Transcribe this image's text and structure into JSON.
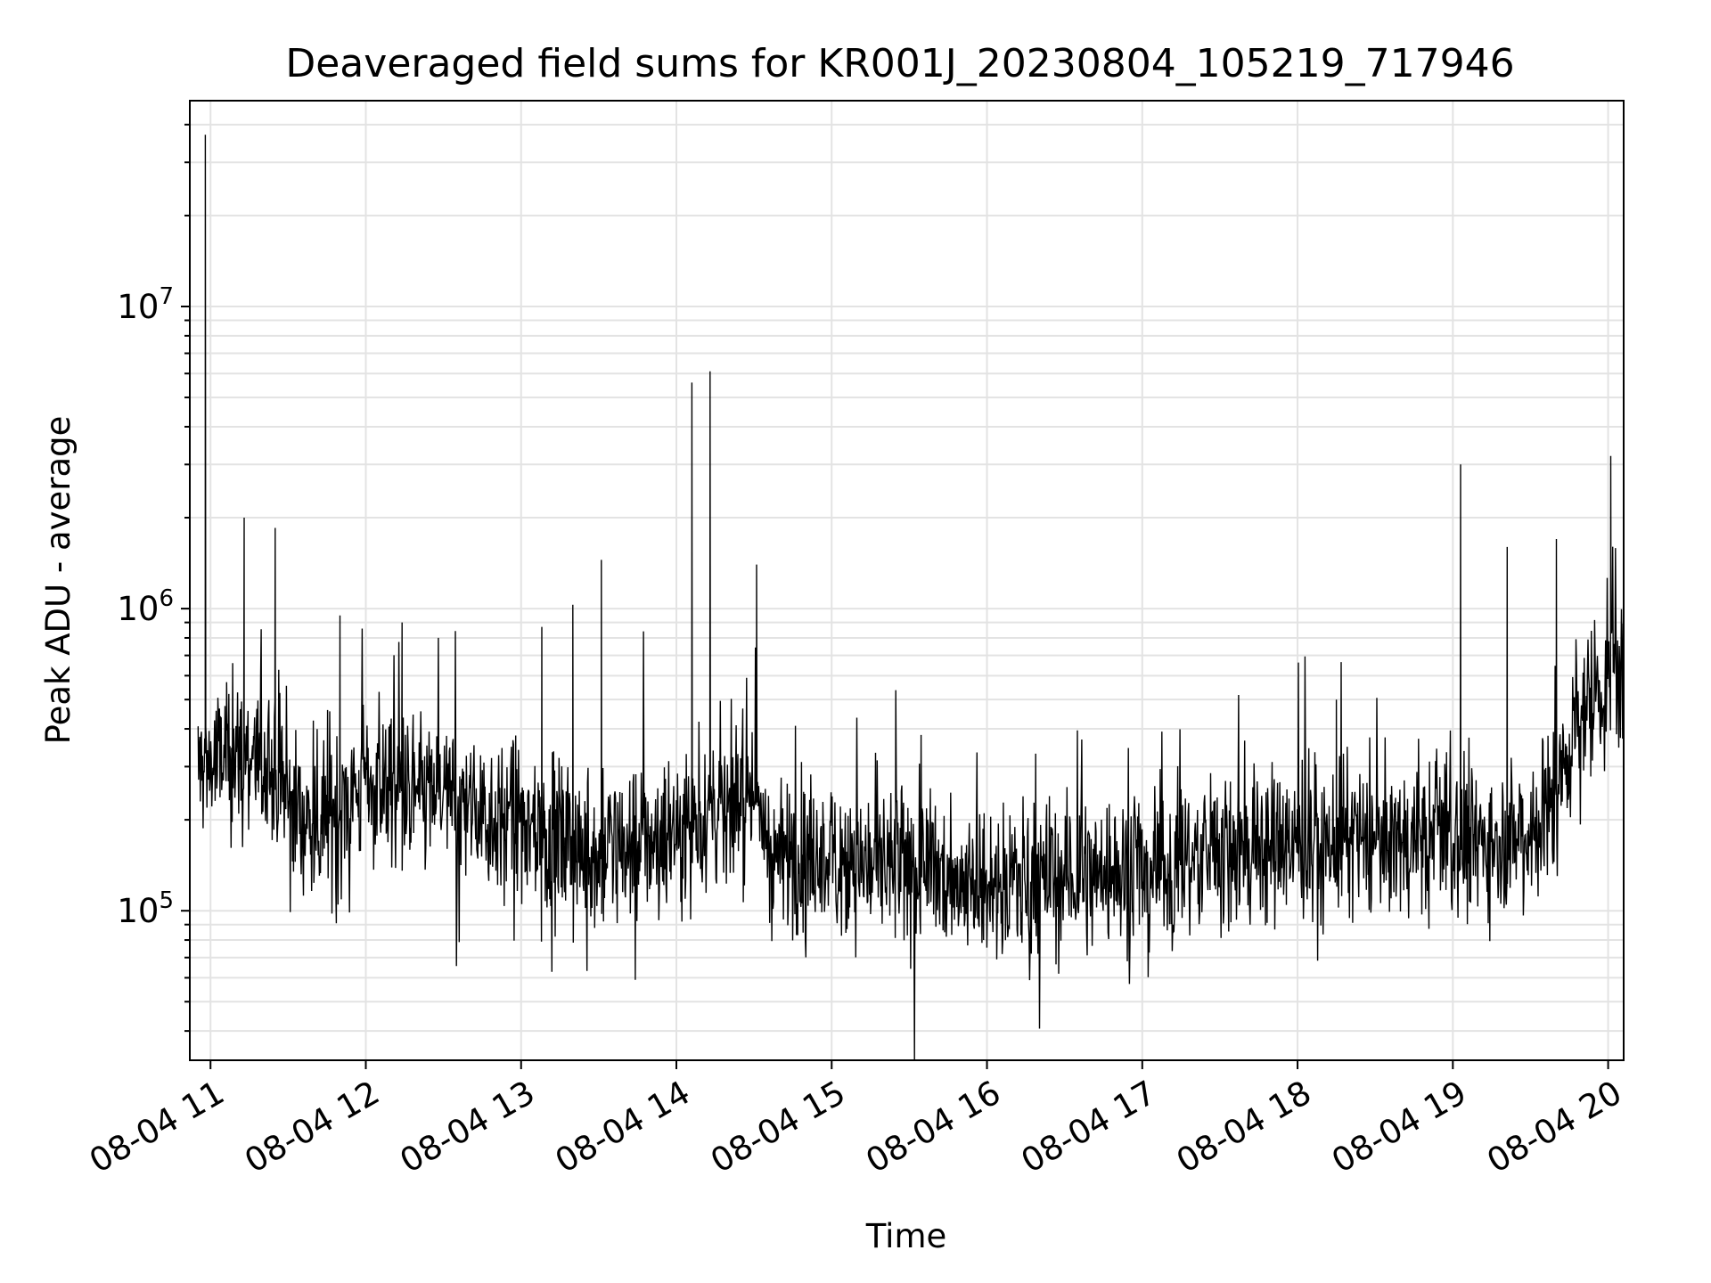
{
  "chart_data": {
    "type": "line",
    "title": "Deaveraged field sums for KR001J_20230804_105219_717946",
    "xlabel": "Time",
    "ylabel": "Peak ADU - average",
    "x_scale": "time",
    "y_scale": "log",
    "xlim": [
      "2023-08-04T10:52",
      "2023-08-04T20:06"
    ],
    "ylim": [
      32000,
      48000000
    ],
    "grid": true,
    "grid_color": "#e3e3e3",
    "line_color": "#000000",
    "x_ticks": [
      {
        "value": "2023-08-04T11:00",
        "label": "08-04 11"
      },
      {
        "value": "2023-08-04T12:00",
        "label": "08-04 12"
      },
      {
        "value": "2023-08-04T13:00",
        "label": "08-04 13"
      },
      {
        "value": "2023-08-04T14:00",
        "label": "08-04 14"
      },
      {
        "value": "2023-08-04T15:00",
        "label": "08-04 15"
      },
      {
        "value": "2023-08-04T16:00",
        "label": "08-04 16"
      },
      {
        "value": "2023-08-04T17:00",
        "label": "08-04 17"
      },
      {
        "value": "2023-08-04T18:00",
        "label": "08-04 18"
      },
      {
        "value": "2023-08-04T19:00",
        "label": "08-04 19"
      },
      {
        "value": "2023-08-04T20:00",
        "label": "08-04 20"
      }
    ],
    "y_ticks": [
      {
        "value": 100000,
        "base": "10",
        "exp": "5"
      },
      {
        "value": 1000000,
        "base": "10",
        "exp": "6"
      },
      {
        "value": 10000000,
        "base": "10",
        "exp": "7"
      }
    ],
    "baseline_trend": {
      "time": [
        "2023-08-04T10:55",
        "2023-08-04T11:15",
        "2023-08-04T11:40",
        "2023-08-04T12:00",
        "2023-08-04T12:30",
        "2023-08-04T13:00",
        "2023-08-04T13:30",
        "2023-08-04T14:00",
        "2023-08-04T14:30",
        "2023-08-04T14:36",
        "2023-08-04T15:00",
        "2023-08-04T15:30",
        "2023-08-04T16:00",
        "2023-08-04T16:30",
        "2023-08-04T17:00",
        "2023-08-04T17:30",
        "2023-08-04T18:00",
        "2023-08-04T18:30",
        "2023-08-04T19:00",
        "2023-08-04T19:30",
        "2023-08-04T19:40",
        "2023-08-04T19:50",
        "2023-08-04T20:05"
      ],
      "value": [
        300000,
        330000,
        190000,
        260000,
        240000,
        190000,
        150000,
        190000,
        250000,
        155000,
        150000,
        135000,
        125000,
        130000,
        140000,
        155000,
        165000,
        170000,
        165000,
        185000,
        240000,
        480000,
        600000
      ]
    },
    "peaks": [
      {
        "time": "2023-08-04T10:58",
        "value": 37000000
      },
      {
        "time": "2023-08-04T11:13",
        "value": 2000000
      },
      {
        "time": "2023-08-04T11:25",
        "value": 1850000
      },
      {
        "time": "2023-08-04T11:50",
        "value": 950000
      },
      {
        "time": "2023-08-04T12:14",
        "value": 900000
      },
      {
        "time": "2023-08-04T13:08",
        "value": 870000
      },
      {
        "time": "2023-08-04T13:20",
        "value": 1030000
      },
      {
        "time": "2023-08-04T13:31",
        "value": 1450000
      },
      {
        "time": "2023-08-04T14:06",
        "value": 5600000
      },
      {
        "time": "2023-08-04T14:13",
        "value": 6100000
      },
      {
        "time": "2023-08-04T14:31",
        "value": 1400000
      },
      {
        "time": "2023-08-04T18:15",
        "value": 500000
      },
      {
        "time": "2023-08-04T19:03",
        "value": 3000000
      },
      {
        "time": "2023-08-04T19:21",
        "value": 1600000
      },
      {
        "time": "2023-08-04T19:40",
        "value": 1700000
      },
      {
        "time": "2023-08-04T20:01",
        "value": 3200000
      }
    ]
  }
}
